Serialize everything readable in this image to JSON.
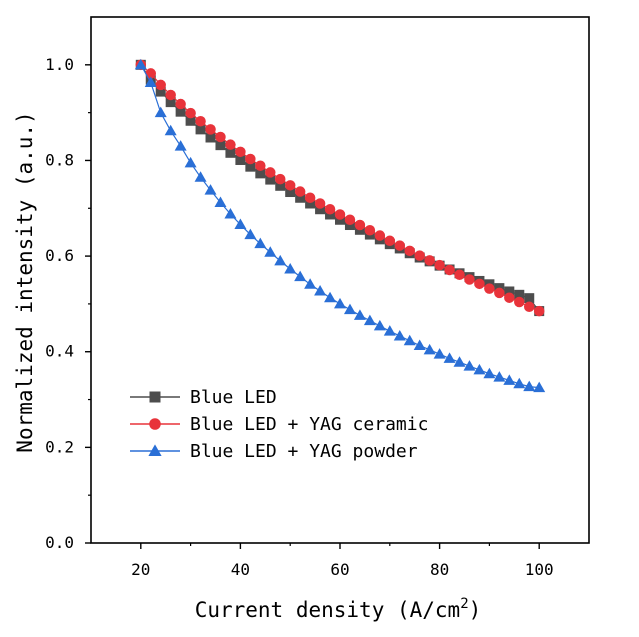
{
  "chart_data": {
    "type": "line",
    "title": "",
    "xlabel": "Current density (A/cm",
    "xlabel_superscript": "2",
    "xlabel_close": ")",
    "ylabel": "Normalized intensity (a.u.)",
    "xlim": [
      10,
      110
    ],
    "ylim": [
      0,
      1.1
    ],
    "x_ticks": [
      20,
      40,
      60,
      80,
      100
    ],
    "x_tick_labels": [
      "20",
      "40",
      "60",
      "80",
      "100"
    ],
    "y_ticks": [
      0.0,
      0.2,
      0.4,
      0.6,
      0.8,
      1.0
    ],
    "y_tick_labels": [
      "0.0",
      "0.2",
      "0.4",
      "0.6",
      "0.8",
      "1.0"
    ],
    "grid": false,
    "legend_position": "bottom-left",
    "x": [
      20,
      22,
      24,
      26,
      28,
      30,
      32,
      34,
      36,
      38,
      40,
      42,
      44,
      46,
      48,
      50,
      52,
      54,
      56,
      58,
      60,
      62,
      64,
      66,
      68,
      70,
      72,
      74,
      76,
      78,
      80,
      82,
      84,
      86,
      88,
      90,
      92,
      94,
      96,
      98,
      100
    ],
    "series": [
      {
        "name": "Blue LED",
        "color": "#4d4d4d",
        "marker": "square",
        "values": [
          1.0,
          0.969,
          0.944,
          0.922,
          0.902,
          0.883,
          0.865,
          0.848,
          0.832,
          0.816,
          0.801,
          0.787,
          0.773,
          0.76,
          0.747,
          0.734,
          0.722,
          0.71,
          0.698,
          0.687,
          0.676,
          0.665,
          0.655,
          0.645,
          0.635,
          0.625,
          0.616,
          0.606,
          0.597,
          0.589,
          0.58,
          0.572,
          0.564,
          0.556,
          0.548,
          0.541,
          0.533,
          0.526,
          0.519,
          0.512,
          0.485
        ]
      },
      {
        "name": "Blue LED + YAG ceramic",
        "color": "#e8333a",
        "marker": "circle",
        "values": [
          1.0,
          0.982,
          0.958,
          0.937,
          0.918,
          0.899,
          0.882,
          0.865,
          0.849,
          0.833,
          0.818,
          0.803,
          0.789,
          0.775,
          0.761,
          0.748,
          0.735,
          0.722,
          0.71,
          0.698,
          0.687,
          0.676,
          0.665,
          0.654,
          0.643,
          0.632,
          0.622,
          0.611,
          0.601,
          0.591,
          0.581,
          0.571,
          0.561,
          0.551,
          0.542,
          0.532,
          0.523,
          0.513,
          0.504,
          0.494,
          0.485
        ]
      },
      {
        "name": "Blue LED + YAG powder",
        "color": "#2a6fd6",
        "marker": "triangle",
        "values": [
          1.0,
          0.963,
          0.9,
          0.862,
          0.83,
          0.795,
          0.765,
          0.738,
          0.712,
          0.688,
          0.666,
          0.645,
          0.626,
          0.608,
          0.59,
          0.573,
          0.557,
          0.541,
          0.527,
          0.513,
          0.5,
          0.488,
          0.476,
          0.465,
          0.454,
          0.443,
          0.433,
          0.423,
          0.413,
          0.404,
          0.395,
          0.386,
          0.378,
          0.37,
          0.362,
          0.354,
          0.347,
          0.34,
          0.333,
          0.327,
          0.325
        ]
      }
    ]
  }
}
